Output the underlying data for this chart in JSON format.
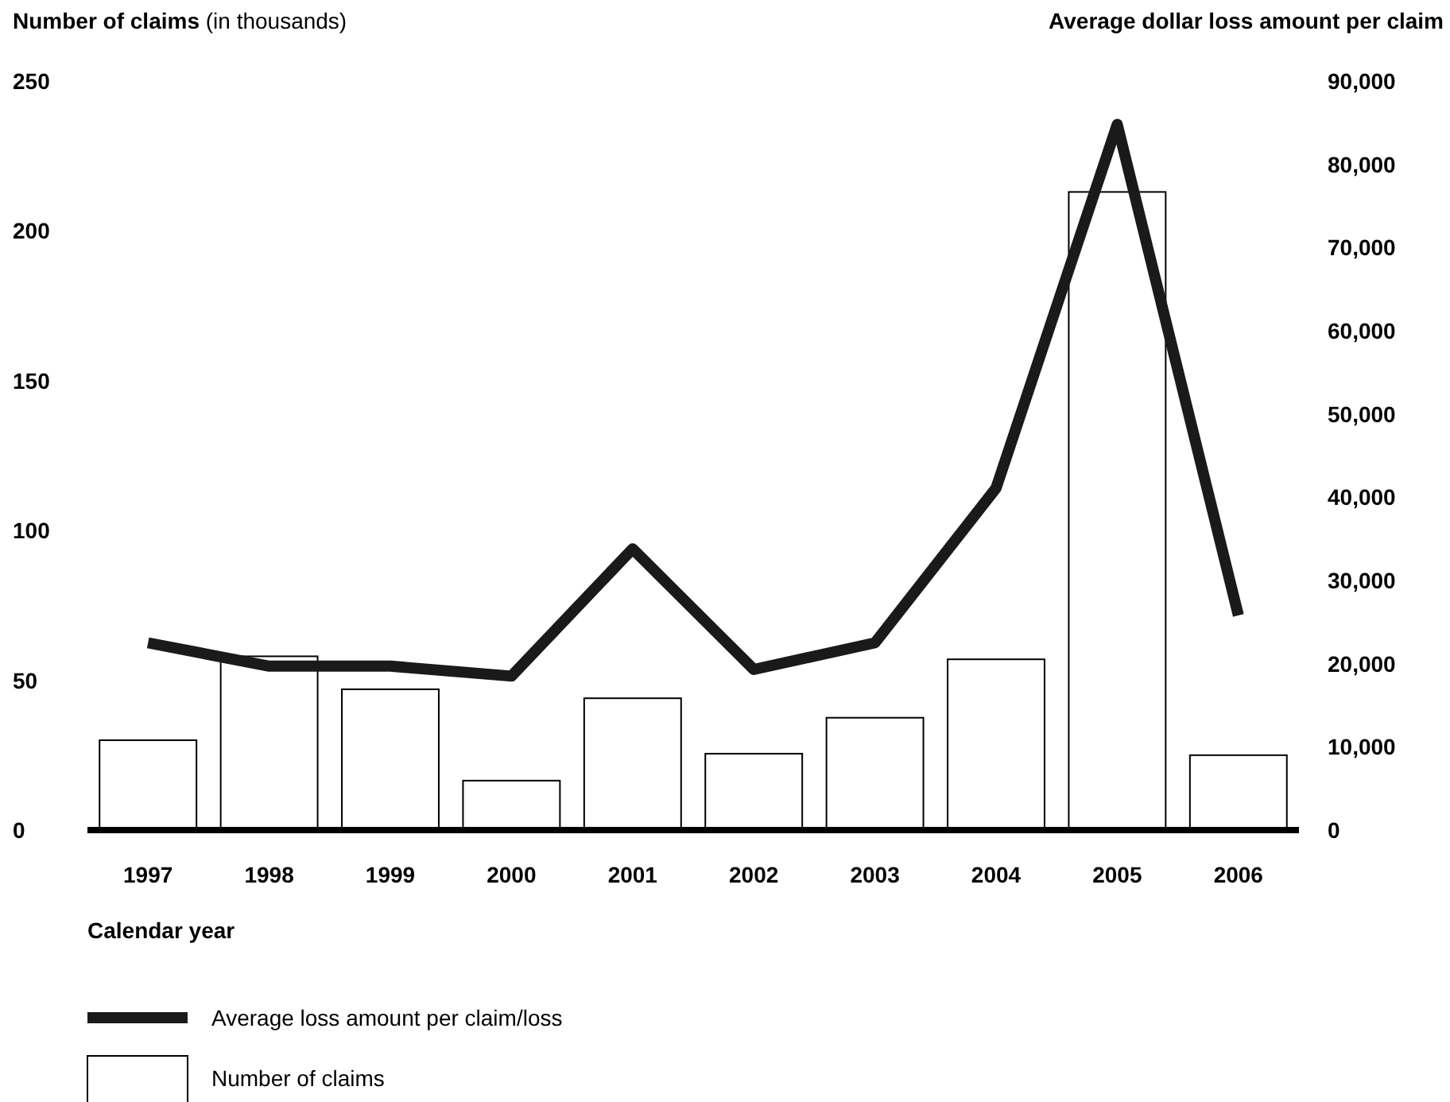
{
  "chart_data": {
    "type": "bar",
    "ylabel": "Number of claims (in thousands)",
    "y2label": "Average dollar loss amount per claim",
    "xlabel": "Calendar year",
    "categories": [
      "1997",
      "1998",
      "1999",
      "2000",
      "2001",
      "2002",
      "2003",
      "2004",
      "2005",
      "2006"
    ],
    "series": [
      {
        "name": "Number of claims",
        "color": "#ffffff",
        "values": [
          30,
          58,
          47,
          16.5,
          44,
          25.5,
          37.5,
          57,
          213,
          25
        ]
      },
      {
        "name": "Average loss amount per claim/loss",
        "type": "line",
        "axis": "y2",
        "color": "#1a1a1a",
        "values": [
          22500,
          19700,
          19700,
          18500,
          33800,
          19300,
          22500,
          41100,
          84800,
          25800
        ]
      }
    ],
    "ylim": [
      0,
      250
    ],
    "yticks": [
      0,
      50,
      100,
      150,
      200,
      250
    ],
    "y2lim": [
      0,
      90000
    ],
    "y2ticks": [
      {
        "value": 0,
        "label": "0"
      },
      {
        "value": 10000,
        "label": "10,000"
      },
      {
        "value": 20000,
        "label": "20,000"
      },
      {
        "value": 30000,
        "label": "30,000"
      },
      {
        "value": 40000,
        "label": "40,000"
      },
      {
        "value": 50000,
        "label": "50,000"
      },
      {
        "value": 60000,
        "label": "60,000"
      },
      {
        "value": 70000,
        "label": "70,000"
      },
      {
        "value": 80000,
        "label": "80,000"
      },
      {
        "value": 90000,
        "label": "90,000"
      }
    ],
    "legend": "bottom left"
  }
}
